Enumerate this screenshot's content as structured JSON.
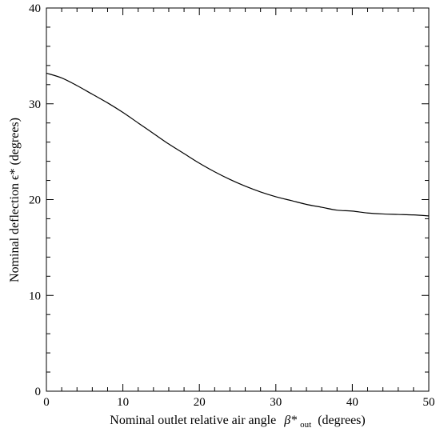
{
  "chart_data": {
    "type": "line",
    "title": "",
    "xlabel": {
      "prefix": "Nominal outlet relative air angle",
      "symbol": "β*",
      "subscript": "out",
      "suffix": "(degrees)"
    },
    "ylabel": "Nominal deflection ϵ* (degrees)",
    "xlim": [
      0,
      50
    ],
    "ylim": [
      0,
      40
    ],
    "x_ticks": [
      0,
      10,
      20,
      30,
      40,
      50
    ],
    "y_ticks": [
      0,
      10,
      20,
      30,
      40
    ],
    "x_minor_step": 2,
    "y_minor_step": 2,
    "grid": false,
    "series": [
      {
        "color": "#000000",
        "x": [
          0,
          2,
          4,
          6,
          8,
          10,
          12,
          14,
          16,
          18,
          20,
          22,
          24,
          26,
          28,
          30,
          32,
          34,
          36,
          38,
          40,
          42,
          44,
          46,
          48,
          50
        ],
        "y": [
          33.2,
          32.7,
          31.9,
          31.0,
          30.1,
          29.1,
          28.0,
          26.9,
          25.8,
          24.8,
          23.8,
          22.9,
          22.1,
          21.4,
          20.8,
          20.3,
          19.9,
          19.5,
          19.2,
          18.9,
          18.8,
          18.6,
          18.5,
          18.45,
          18.4,
          18.3
        ]
      }
    ]
  }
}
